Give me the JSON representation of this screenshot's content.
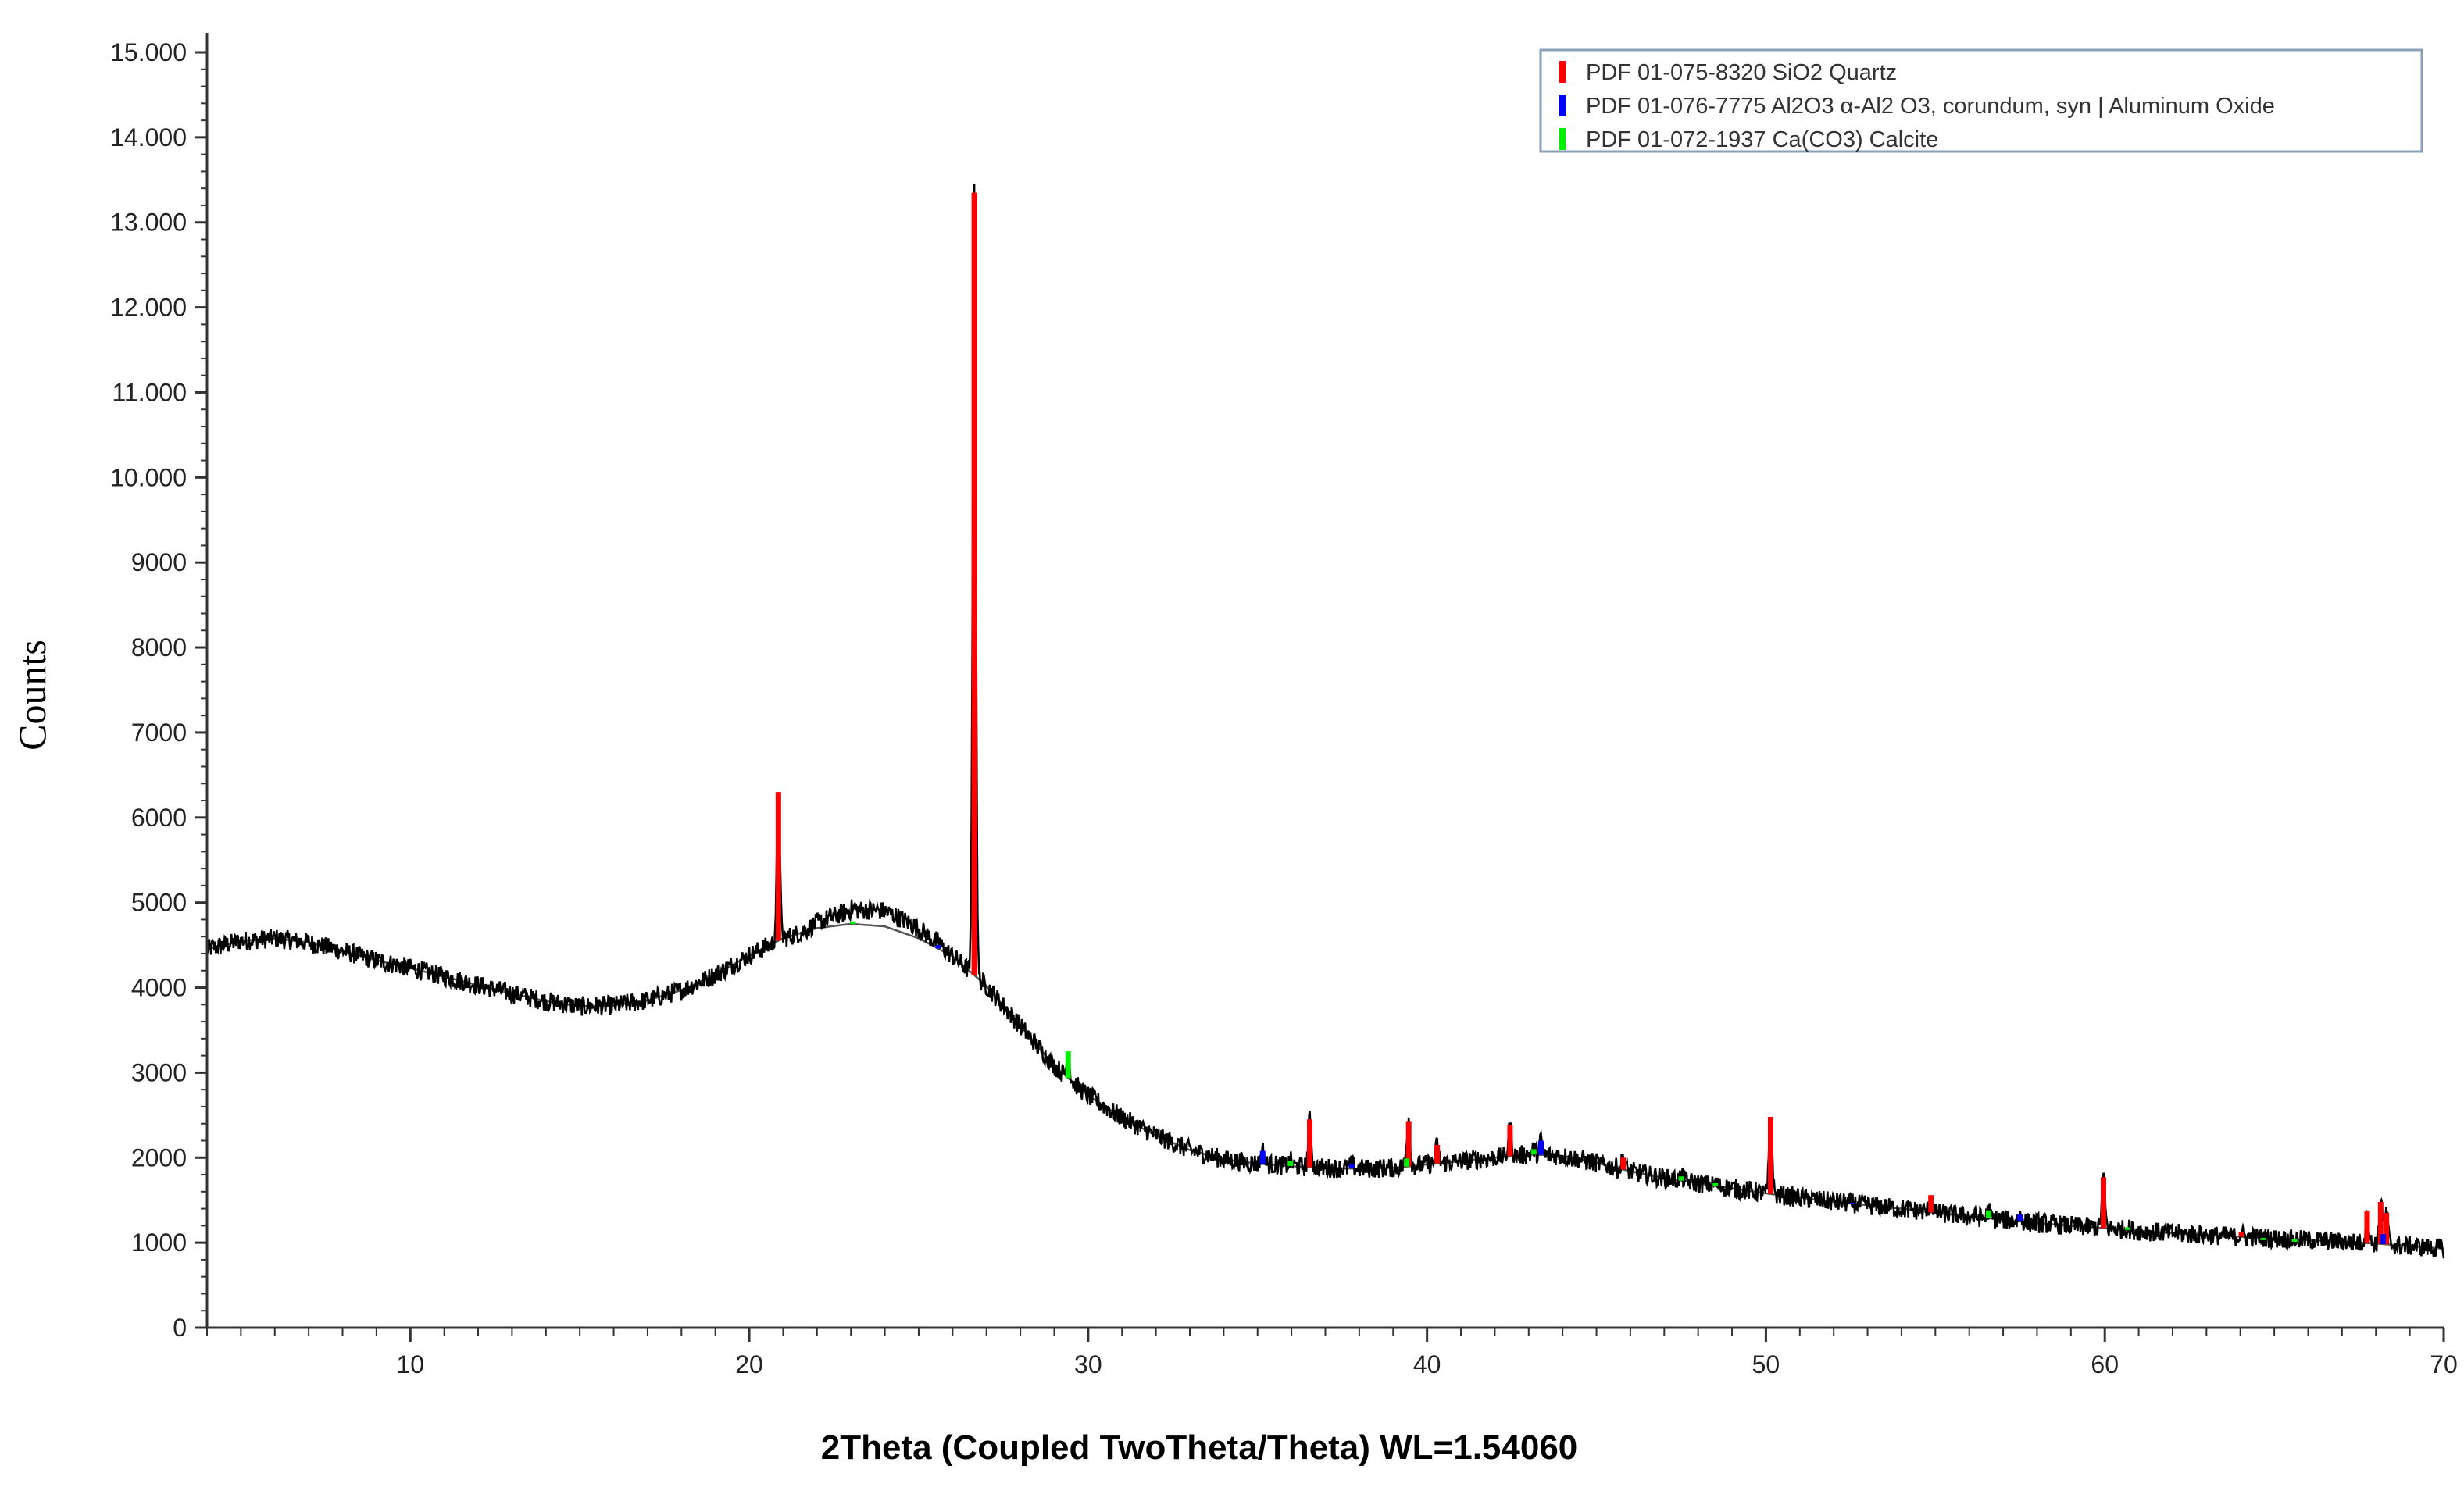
{
  "chart_data": {
    "type": "line",
    "title": "",
    "xlabel": "2Theta (Coupled TwoTheta/Theta) WL=1.54060",
    "ylabel": "Counts",
    "xlim": [
      4,
      70
    ],
    "ylim": [
      0,
      15000
    ],
    "x_ticks": [
      10,
      20,
      30,
      40,
      50,
      60,
      70
    ],
    "x_tick_labels": [
      "10",
      "20",
      "30",
      "40",
      "50",
      "60",
      "70"
    ],
    "y_ticks": [
      0,
      1000,
      2000,
      3000,
      4000,
      5000,
      6000,
      7000,
      8000,
      9000,
      10000,
      11000,
      12000,
      13000,
      14000,
      15000
    ],
    "y_tick_labels": [
      "0",
      "1000",
      "2000",
      "3000",
      "4000",
      "5000",
      "6000",
      "7000",
      "8000",
      "9000",
      "10.000",
      "11.000",
      "12.000",
      "13.000",
      "14.000",
      "15.000"
    ],
    "grid": false,
    "legend_position": "top-right",
    "legend": [
      {
        "label": "PDF 01-075-8320 SiO2 Quartz",
        "color": "#ff0000"
      },
      {
        "label": "PDF 01-076-7775 Al2O3 α-Al2 O3, corundum, syn | Aluminum Oxide",
        "color": "#0000ff"
      },
      {
        "label": "PDF 01-072-1937 Ca(CO3) Calcite",
        "color": "#00ee00"
      }
    ],
    "pattern_color": "#000000",
    "background_curve": {
      "color": "#555555",
      "x": [
        4,
        5,
        6,
        7,
        8,
        9,
        10,
        11,
        12,
        13,
        14,
        15,
        16,
        17,
        18,
        19,
        20,
        21,
        22,
        23,
        24,
        25,
        26,
        27,
        28,
        29,
        30,
        31,
        32,
        33,
        34,
        35,
        36,
        37,
        38,
        39,
        40,
        41,
        42,
        43,
        44,
        45,
        46,
        47,
        48,
        49,
        50,
        51,
        52,
        53,
        54,
        55,
        56,
        57,
        58,
        59,
        60,
        61,
        62,
        63,
        64,
        65,
        66,
        67,
        68,
        69,
        70
      ],
      "y": [
        4450,
        4550,
        4580,
        4530,
        4430,
        4320,
        4230,
        4130,
        4030,
        3930,
        3840,
        3780,
        3790,
        3850,
        3970,
        4150,
        4380,
        4580,
        4700,
        4750,
        4720,
        4580,
        4370,
        4020,
        3550,
        3080,
        2730,
        2470,
        2260,
        2090,
        1980,
        1930,
        1900,
        1880,
        1870,
        1880,
        1920,
        1960,
        2000,
        2040,
        2020,
        1940,
        1840,
        1760,
        1700,
        1640,
        1580,
        1530,
        1480,
        1440,
        1400,
        1350,
        1310,
        1270,
        1230,
        1200,
        1170,
        1140,
        1110,
        1090,
        1070,
        1050,
        1030,
        1010,
        990,
        960,
        930
      ]
    },
    "series": [
      {
        "name": "PDF 01-075-8320 SiO2 Quartz",
        "color": "#ff0000",
        "peaks": [
          {
            "x": 20.86,
            "y": 6300
          },
          {
            "x": 26.64,
            "y": 13350
          },
          {
            "x": 36.54,
            "y": 2450
          },
          {
            "x": 39.46,
            "y": 2430
          },
          {
            "x": 40.3,
            "y": 2150
          },
          {
            "x": 42.45,
            "y": 2380
          },
          {
            "x": 45.79,
            "y": 2000
          },
          {
            "x": 50.14,
            "y": 2480
          },
          {
            "x": 54.87,
            "y": 1560
          },
          {
            "x": 59.96,
            "y": 1770
          },
          {
            "x": 64.03,
            "y": 1130
          },
          {
            "x": 67.74,
            "y": 1370
          },
          {
            "x": 68.14,
            "y": 1480
          },
          {
            "x": 68.31,
            "y": 1350
          }
        ]
      },
      {
        "name": "PDF 01-076-7775 Al2O3 α-Al2 O3, corundum, syn | Aluminum Oxide",
        "color": "#0000ff",
        "peaks": [
          {
            "x": 25.58,
            "y": 4500
          },
          {
            "x": 35.15,
            "y": 2080
          },
          {
            "x": 37.78,
            "y": 1930
          },
          {
            "x": 43.36,
            "y": 2200
          },
          {
            "x": 52.55,
            "y": 1470
          },
          {
            "x": 57.5,
            "y": 1330
          },
          {
            "x": 66.52,
            "y": 1020
          },
          {
            "x": 68.21,
            "y": 1100
          }
        ]
      },
      {
        "name": "PDF 01-072-1937 Ca(CO3) Calcite",
        "color": "#00ee00",
        "peaks": [
          {
            "x": 23.06,
            "y": 4780
          },
          {
            "x": 29.41,
            "y": 3250
          },
          {
            "x": 35.97,
            "y": 1960
          },
          {
            "x": 39.4,
            "y": 1990
          },
          {
            "x": 43.15,
            "y": 2100
          },
          {
            "x": 47.5,
            "y": 1780
          },
          {
            "x": 48.51,
            "y": 1700
          },
          {
            "x": 56.57,
            "y": 1380
          },
          {
            "x": 60.67,
            "y": 1180
          },
          {
            "x": 64.67,
            "y": 1030
          },
          {
            "x": 65.6,
            "y": 1010
          }
        ]
      }
    ]
  }
}
